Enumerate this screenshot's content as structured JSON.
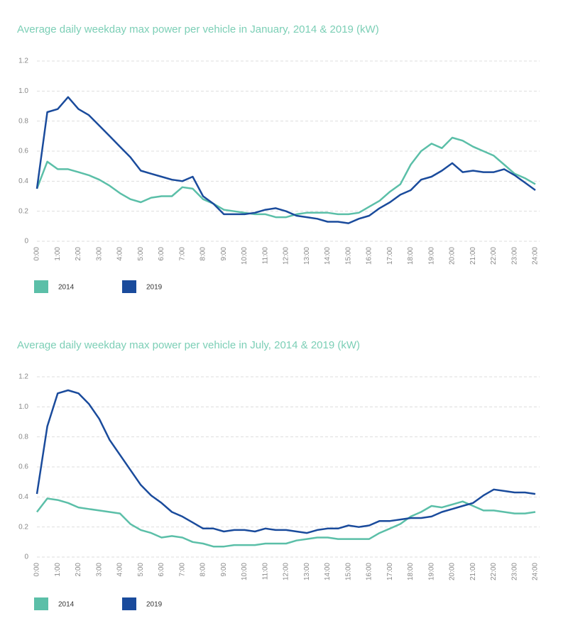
{
  "chart_data": [
    {
      "type": "line",
      "title": "Average daily weekday max power per vehicle in January, 2014 & 2019 (kW)",
      "categories": [
        "0:00",
        null,
        "1:00",
        null,
        "2:00",
        null,
        "3:00",
        null,
        "4:00",
        null,
        "5:00",
        null,
        "6:00",
        null,
        "7:00",
        null,
        "8:00",
        null,
        "9:00",
        null,
        "10:00",
        null,
        "11:00",
        null,
        "12:00",
        null,
        "13:00",
        null,
        "14:00",
        null,
        "15:00",
        null,
        "16:00",
        null,
        "17:00",
        null,
        "18:00",
        null,
        "19:00",
        null,
        "20:00",
        null,
        "21:00",
        null,
        "22:00",
        null,
        "23:00",
        null,
        "24:00"
      ],
      "series": [
        {
          "name": "2014",
          "color": "#5bbfa8",
          "values": [
            0.35,
            0.53,
            0.48,
            0.48,
            0.46,
            0.44,
            0.41,
            0.37,
            0.32,
            0.28,
            0.26,
            0.29,
            0.3,
            0.3,
            0.36,
            0.35,
            0.28,
            0.25,
            0.21,
            0.2,
            0.19,
            0.18,
            0.18,
            0.16,
            0.16,
            0.18,
            0.19,
            0.19,
            0.19,
            0.18,
            0.18,
            0.19,
            0.23,
            0.27,
            0.33,
            0.38,
            0.51,
            0.6,
            0.65,
            0.62,
            0.69,
            0.67,
            0.63,
            0.6,
            0.57,
            0.51,
            0.45,
            0.42,
            0.38
          ]
        },
        {
          "name": "2019",
          "color": "#1a4b9c",
          "values": [
            0.35,
            0.86,
            0.88,
            0.96,
            0.88,
            0.84,
            0.77,
            0.7,
            0.63,
            0.56,
            0.47,
            0.45,
            0.43,
            0.41,
            0.4,
            0.43,
            0.3,
            0.25,
            0.18,
            0.18,
            0.18,
            0.19,
            0.21,
            0.22,
            0.2,
            0.17,
            0.16,
            0.15,
            0.13,
            0.13,
            0.12,
            0.15,
            0.17,
            0.22,
            0.26,
            0.31,
            0.34,
            0.41,
            0.43,
            0.47,
            0.52,
            0.46,
            0.47,
            0.46,
            0.46,
            0.48,
            0.44,
            0.39,
            0.34
          ]
        }
      ],
      "ylim": [
        0,
        1.2
      ],
      "yticks": [
        0,
        0.2,
        0.4,
        0.6,
        0.8,
        {
          "value": 1,
          "label": "1.0"
        },
        1.2
      ],
      "grid": true
    },
    {
      "type": "line",
      "title": "Average daily weekday max power per vehicle in July, 2014 & 2019 (kW)",
      "categories": [
        "0:00",
        null,
        "1:00",
        null,
        "2:00",
        null,
        "3:00",
        null,
        "4:00",
        null,
        "5:00",
        null,
        "6:00",
        null,
        "7:00",
        null,
        "8:00",
        null,
        "9:00",
        null,
        "10:00",
        null,
        "11:00",
        null,
        "12:00",
        null,
        "13:00",
        null,
        "14:00",
        null,
        "15:00",
        null,
        "16:00",
        null,
        "17:00",
        null,
        "18:00",
        null,
        "19:00",
        null,
        "20:00",
        null,
        "21:00",
        null,
        "22:00",
        null,
        "23:00",
        null,
        "24:00"
      ],
      "series": [
        {
          "name": "2014",
          "color": "#5bbfa8",
          "values": [
            0.3,
            0.39,
            0.38,
            0.36,
            0.33,
            0.32,
            0.31,
            0.3,
            0.29,
            0.22,
            0.18,
            0.16,
            0.13,
            0.14,
            0.13,
            0.1,
            0.09,
            0.07,
            0.07,
            0.08,
            0.08,
            0.08,
            0.09,
            0.09,
            0.09,
            0.11,
            0.12,
            0.13,
            0.13,
            0.12,
            0.12,
            0.12,
            0.12,
            0.16,
            0.19,
            0.22,
            0.27,
            0.3,
            0.34,
            0.33,
            0.35,
            0.37,
            0.34,
            0.31,
            0.31,
            0.3,
            0.29,
            0.29,
            0.3
          ]
        },
        {
          "name": "2019",
          "color": "#1a4b9c",
          "values": [
            0.42,
            0.87,
            1.09,
            1.11,
            1.09,
            1.02,
            0.92,
            0.78,
            0.68,
            0.58,
            0.48,
            0.41,
            0.36,
            0.3,
            0.27,
            0.23,
            0.19,
            0.19,
            0.17,
            0.18,
            0.18,
            0.17,
            0.19,
            0.18,
            0.18,
            0.17,
            0.16,
            0.18,
            0.19,
            0.19,
            0.21,
            0.2,
            0.21,
            0.24,
            0.24,
            0.25,
            0.26,
            0.26,
            0.27,
            0.3,
            0.32,
            0.34,
            0.36,
            0.41,
            0.45,
            0.44,
            0.43,
            0.43,
            0.42
          ]
        }
      ],
      "ylim": [
        0,
        1.2
      ],
      "yticks": [
        0,
        0.2,
        0.4,
        0.6,
        0.8,
        {
          "value": 1,
          "label": "1.0"
        },
        1.2
      ],
      "grid": true
    }
  ]
}
